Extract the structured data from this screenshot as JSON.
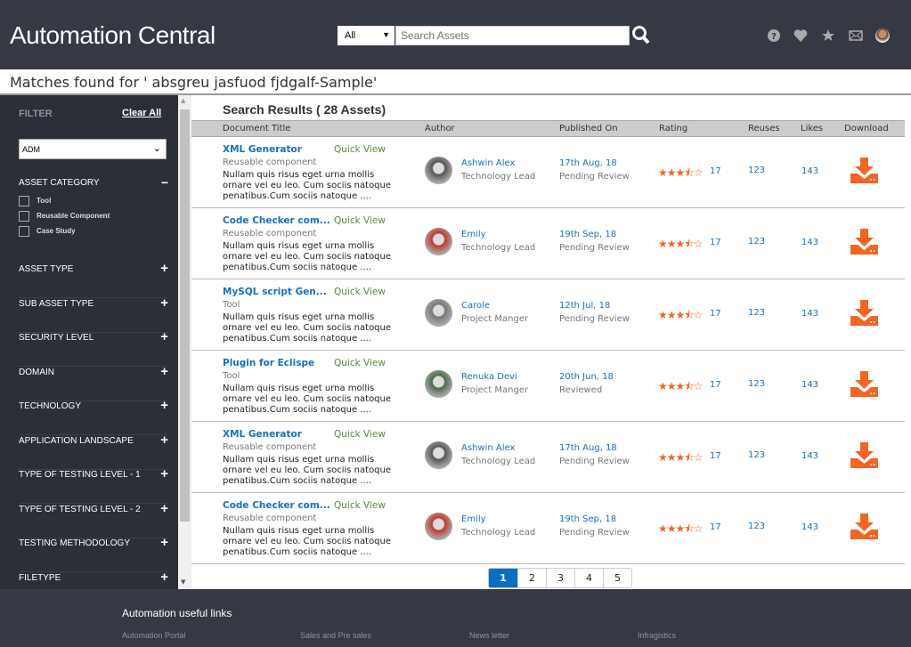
{
  "header": {
    "title": "Automation Central",
    "search_scope": "All",
    "search_placeholder": "Search Assets",
    "icons": [
      "help-icon",
      "heart-icon",
      "star-icon",
      "mail-icon",
      "user-avatar"
    ]
  },
  "subheader": {
    "text": "Matches found for ' absgreu jasfuod fjdgalf-Sample'"
  },
  "sidebar": {
    "filter_label": "FILTER",
    "clear_all": "Clear All",
    "selected": "ADM",
    "asset_category": {
      "label": "ASSET CATEGORY",
      "options": [
        "Tool",
        "Reusable Component",
        "Case Study"
      ]
    },
    "items": [
      "ASSET TYPE",
      "SUB ASSET TYPE",
      "SECURITY LEVEL",
      "DOMAIN",
      "TECHNOLOGY",
      "APPLICATION LANDSCAPE",
      "TYPE OF TESTING LEVEL - 1",
      "TYPE OF TESTING LEVEL - 2",
      "TESTING METHODOLOGY",
      "FILETYPE"
    ]
  },
  "results": {
    "title": "Search Results ( 28 Assets)",
    "columns": [
      "Document Title",
      "Author",
      "Published On",
      "Rating",
      "Reuses",
      "Likes",
      "Download"
    ],
    "quick_view": "Quick View",
    "rows": [
      {
        "title": "XML Generator",
        "type": "Reusable component",
        "desc": "Nullam quis risus eget urna mollis ornare vel eu leo. Cum sociis natoque penatibus.Cum sociis natoque ....",
        "author": "Ashwin Alex",
        "role": "Technology Lead",
        "date": "17th Aug, 18",
        "status": "Pending Review",
        "rating": 3.5,
        "rating_count": "17",
        "reuses": "123",
        "likes": "143"
      },
      {
        "title": "Code Checker com...",
        "type": "Reusable component",
        "desc": "Nullam quis risus eget urna mollis ornare vel eu leo. Cum sociis natoque penatibus.Cum sociis natoque ....",
        "author": "Emily",
        "role": "Technology Lead",
        "date": "19th Sep, 18",
        "status": "Pending Review",
        "rating": 3.5,
        "rating_count": "17",
        "reuses": "123",
        "likes": "143"
      },
      {
        "title": "MySQL script Gen...",
        "type": "Tool",
        "desc": "Nullam quis risus eget urna mollis ornare vel eu leo. Cum sociis natoque penatibus.Cum sociis natoque ....",
        "author": "Carole",
        "role": "Project Manger",
        "date": "12th Jul, 18",
        "status": "Pending Review",
        "rating": 3.5,
        "rating_count": "17",
        "reuses": "123",
        "likes": "143"
      },
      {
        "title": "Plugin for Eclispe",
        "type": "Tool",
        "desc": "Nullam quis risus eget urna mollis ornare vel eu leo. Cum sociis natoque penatibus.Cum sociis natoque ....",
        "author": "Renuka Devi",
        "role": "Project Manger",
        "date": "20th Jun, 18",
        "status": "Reviewed",
        "rating": 3.5,
        "rating_count": "17",
        "reuses": "123",
        "likes": "143"
      },
      {
        "title": "XML Generator",
        "type": "Reusable component",
        "desc": "Nullam quis risus eget urna mollis ornare vel eu leo. Cum sociis natoque penatibus.Cum sociis natoque ....",
        "author": "Ashwin Alex",
        "role": "Technology Lead",
        "date": "17th Aug, 18",
        "status": "Pending Review",
        "rating": 3.5,
        "rating_count": "17",
        "reuses": "123",
        "likes": "143"
      },
      {
        "title": "Code Checker com...",
        "type": "Reusable component",
        "desc": "Nullam quis risus eget urna mollis ornare vel eu leo. Cum sociis natoque penatibus.Cum sociis natoque ....",
        "author": "Emily",
        "role": "Technology Lead",
        "date": "19th Sep, 18",
        "status": "Pending Review",
        "rating": 3.5,
        "rating_count": "17",
        "reuses": "123",
        "likes": "143"
      }
    ]
  },
  "pagination": {
    "pages": [
      "1",
      "2",
      "3",
      "4",
      "5"
    ],
    "current": "1"
  },
  "footer": {
    "title": "Automation useful links",
    "links": [
      "Automation Portal",
      "Sales and Pre sales",
      "News letter",
      "Infragistics"
    ]
  },
  "colors": {
    "header_bg": "#353944",
    "sidebar_bg": "#2b2f38",
    "accent": "#f26522",
    "link": "#1a6fc0",
    "page_active": "#0a6fc2"
  }
}
